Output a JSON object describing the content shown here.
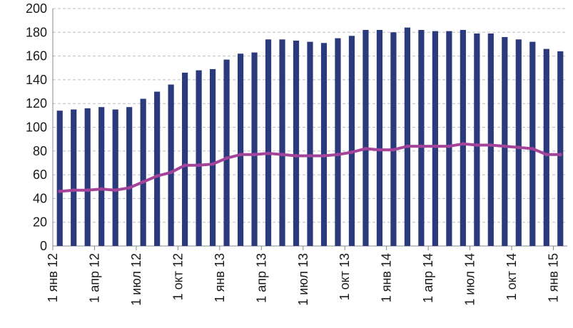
{
  "chart_data": {
    "type": "bar",
    "title": "",
    "xlabel": "",
    "ylabel": "",
    "ylim": [
      0,
      200
    ],
    "yticks": [
      0,
      20,
      40,
      60,
      80,
      100,
      120,
      140,
      160,
      180,
      200
    ],
    "grid": "horizontal dashed",
    "legend": "none",
    "x_labels": [
      {
        "index": 0,
        "label": "1 янв 12"
      },
      {
        "index": 3,
        "label": "1 апр 12"
      },
      {
        "index": 6,
        "label": "1 июл 12"
      },
      {
        "index": 9,
        "label": "1 окт 12"
      },
      {
        "index": 12,
        "label": "1 янв 13"
      },
      {
        "index": 15,
        "label": "1 апр 13"
      },
      {
        "index": 18,
        "label": "1 июл 13"
      },
      {
        "index": 21,
        "label": "1 окт 13"
      },
      {
        "index": 24,
        "label": "1 янв 14"
      },
      {
        "index": 27,
        "label": "1 апр 14"
      },
      {
        "index": 30,
        "label": "1 июл 14"
      },
      {
        "index": 33,
        "label": "1 окт 14"
      },
      {
        "index": 36,
        "label": "1 янв 15"
      }
    ],
    "series": [
      {
        "type": "bar",
        "color": "#2a3a7c",
        "values": [
          114,
          115,
          116,
          117,
          115,
          117,
          124,
          130,
          136,
          146,
          148,
          149,
          157,
          162,
          163,
          174,
          174,
          173,
          172,
          171,
          175,
          177,
          182,
          182,
          180,
          184,
          182,
          181,
          181,
          182,
          179,
          179,
          176,
          174,
          172,
          166,
          164
        ]
      },
      {
        "type": "line",
        "color": "#a3449a",
        "values": [
          46,
          47,
          47,
          48,
          47,
          49,
          54,
          59,
          62,
          68,
          68,
          69,
          74,
          77,
          77,
          78,
          77,
          76,
          76,
          76,
          77,
          79,
          82,
          81,
          81,
          84,
          84,
          84,
          84,
          86,
          85,
          85,
          84,
          83,
          82,
          77,
          77
        ]
      }
    ]
  }
}
